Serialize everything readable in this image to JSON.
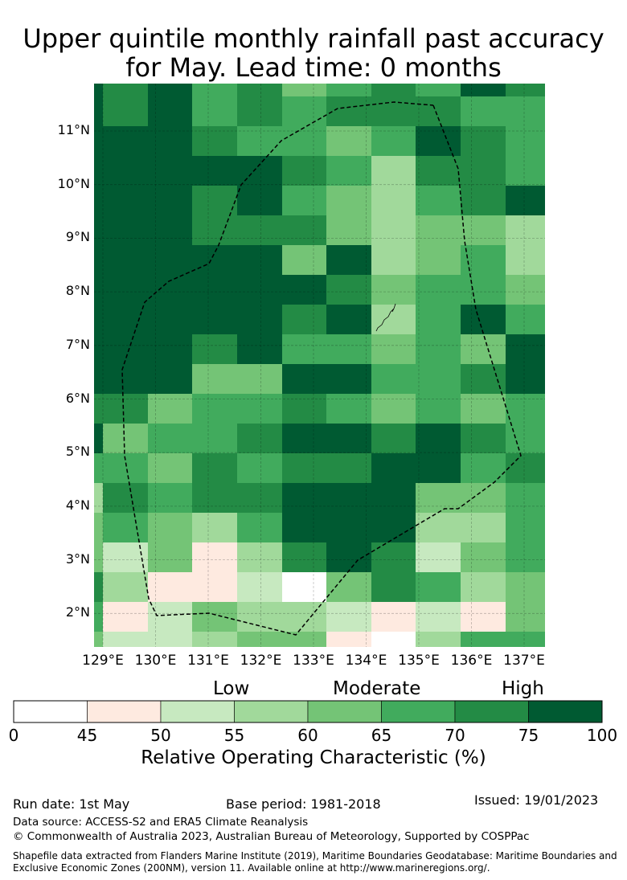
{
  "title_line1": "Upper quintile monthly rainfall past accuracy",
  "title_line2": "for May. Lead time: 0 months",
  "chart_data": {
    "type": "heatmap",
    "title": "Upper quintile monthly rainfall past accuracy for May. Lead time: 0 months",
    "xlabel": "",
    "ylabel": "",
    "x_tick_labels": [
      "129°E",
      "130°E",
      "131°E",
      "132°E",
      "133°E",
      "134°E",
      "135°E",
      "136°E",
      "137°E"
    ],
    "y_tick_labels": [
      "11°N",
      "10°N",
      "9°N",
      "8°N",
      "7°N",
      "6°N",
      "5°N",
      "4°N",
      "3°N",
      "2°N"
    ],
    "x_range": [
      128.8,
      137.4
    ],
    "y_range": [
      1.4,
      11.9
    ],
    "grid": true,
    "value_bins": [
      [
        0,
        45
      ],
      [
        45,
        50
      ],
      [
        50,
        55
      ],
      [
        55,
        60
      ],
      [
        60,
        65
      ],
      [
        65,
        70
      ],
      [
        70,
        75
      ],
      [
        75,
        100
      ]
    ],
    "bin_colors": [
      "#ffffff",
      "#feeae0",
      "#c7e9c0",
      "#a1d99b",
      "#74c476",
      "#41ab5d",
      "#238b45",
      "#005a32"
    ],
    "levels_note": "rows north to south, columns west to east; each value is the index into value_bins",
    "levels": [
      [
        7,
        6,
        7,
        5,
        6,
        4,
        5,
        6,
        5,
        7,
        6
      ],
      [
        7,
        6,
        7,
        5,
        6,
        5,
        6,
        6,
        6,
        5,
        5
      ],
      [
        7,
        7,
        7,
        6,
        5,
        5,
        4,
        5,
        7,
        6,
        5
      ],
      [
        7,
        7,
        7,
        7,
        7,
        6,
        5,
        3,
        6,
        6,
        5
      ],
      [
        7,
        7,
        7,
        6,
        7,
        5,
        4,
        3,
        5,
        6,
        7
      ],
      [
        7,
        7,
        7,
        6,
        6,
        6,
        4,
        3,
        4,
        4,
        3
      ],
      [
        7,
        7,
        7,
        7,
        7,
        4,
        7,
        3,
        4,
        5,
        3
      ],
      [
        7,
        7,
        7,
        7,
        7,
        7,
        6,
        4,
        5,
        5,
        4
      ],
      [
        7,
        7,
        7,
        7,
        7,
        6,
        7,
        3,
        5,
        7,
        5
      ],
      [
        7,
        7,
        7,
        6,
        7,
        5,
        5,
        4,
        5,
        4,
        7
      ],
      [
        7,
        7,
        7,
        4,
        4,
        7,
        7,
        5,
        5,
        6,
        7
      ],
      [
        6,
        6,
        4,
        5,
        5,
        6,
        5,
        4,
        5,
        4,
        5
      ],
      [
        7,
        4,
        5,
        5,
        6,
        7,
        7,
        6,
        7,
        6,
        5
      ],
      [
        5,
        5,
        4,
        6,
        5,
        6,
        6,
        7,
        7,
        5,
        6
      ],
      [
        3,
        6,
        5,
        6,
        6,
        7,
        7,
        7,
        4,
        4,
        5
      ],
      [
        4,
        5,
        4,
        3,
        5,
        7,
        7,
        7,
        3,
        3,
        5
      ],
      [
        4,
        2,
        4,
        1,
        3,
        6,
        7,
        6,
        2,
        4,
        5
      ],
      [
        6,
        3,
        1,
        1,
        2,
        0,
        4,
        6,
        5,
        3,
        4
      ],
      [
        5,
        1,
        2,
        4,
        3,
        3,
        2,
        1,
        2,
        1,
        4
      ],
      [
        4,
        2,
        2,
        3,
        4,
        4,
        1,
        0,
        3,
        5,
        5
      ]
    ],
    "overlay": "EEZ boundary (dashed)"
  },
  "colorbar": {
    "ticks": [
      "0",
      "45",
      "50",
      "55",
      "60",
      "65",
      "70",
      "75",
      "100"
    ],
    "categories": [
      "Low",
      "Moderate",
      "High"
    ],
    "label": "Relative Operating Characteristic (%)"
  },
  "footer": {
    "run_date": "Run date: 1st May",
    "base_period": "Base period: 1981-2018",
    "issued": "Issued: 19/01/2023",
    "data_source": "Data source: ACCESS-S2 and ERA5 Climate Reanalysis",
    "copyright": "© Commonwealth of Australia 2023, Australian Bureau of Meteorology, Supported by COSPPac",
    "shapefile_line1": "Shapefile data extracted from Flanders Marine Institute (2019), Maritime Boundaries Geodatabase: Maritime Boundaries and",
    "shapefile_line2": "Exclusive Economic Zones (200NM), version 11. Available online at http://www.marineregions.org/."
  }
}
